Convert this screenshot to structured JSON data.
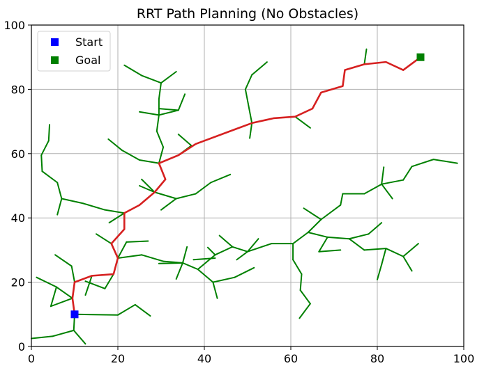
{
  "chart_data": {
    "type": "line",
    "title": "RRT Path Planning (No Obstacles)",
    "xlabel": "",
    "ylabel": "",
    "xlim": [
      0,
      100
    ],
    "ylim": [
      0,
      100
    ],
    "xticks": [
      "0",
      "20",
      "40",
      "60",
      "80",
      "100"
    ],
    "yticks": [
      "0",
      "20",
      "40",
      "60",
      "80",
      "100"
    ],
    "grid": true,
    "legend_position": "top-left",
    "colors": {
      "tree": "#008000",
      "path": "#d62020",
      "start": "#0000ff",
      "goal": "#008000"
    },
    "legend": [
      {
        "label": "Start",
        "color": "#0000ff"
      },
      {
        "label": "Goal",
        "color": "#008000"
      }
    ],
    "start": [
      10,
      10
    ],
    "goal": [
      90,
      90
    ],
    "path": [
      [
        10,
        10
      ],
      [
        9.5,
        15
      ],
      [
        10,
        20
      ],
      [
        14,
        22
      ],
      [
        19,
        22.5
      ],
      [
        20,
        27.5
      ],
      [
        18.5,
        32
      ],
      [
        21.5,
        36.5
      ],
      [
        21.5,
        41.5
      ],
      [
        25,
        44
      ],
      [
        28.5,
        48
      ],
      [
        31,
        52
      ],
      [
        29.5,
        57
      ],
      [
        34,
        59.5
      ],
      [
        38,
        63
      ],
      [
        47,
        67.5
      ],
      [
        51,
        69.5
      ],
      [
        56,
        71
      ],
      [
        61,
        71.5
      ],
      [
        65,
        74
      ],
      [
        67,
        79
      ],
      [
        72,
        81
      ],
      [
        72.5,
        86
      ],
      [
        77,
        87.8
      ],
      [
        82,
        88.5
      ],
      [
        86,
        86
      ],
      [
        90,
        90
      ]
    ],
    "tree": [
      [
        [
          10,
          10
        ],
        [
          20,
          9.8
        ]
      ],
      [
        [
          20,
          9.8
        ],
        [
          24,
          13
        ]
      ],
      [
        [
          24,
          13
        ],
        [
          27.5,
          9.5
        ]
      ],
      [
        [
          10,
          10
        ],
        [
          9.8,
          5
        ]
      ],
      [
        [
          9.8,
          5
        ],
        [
          12.5,
          0.8
        ]
      ],
      [
        [
          9.8,
          5
        ],
        [
          5,
          3.2
        ]
      ],
      [
        [
          5,
          3.2
        ],
        [
          0,
          2.5
        ]
      ],
      [
        [
          9.5,
          15
        ],
        [
          5.8,
          18.5
        ]
      ],
      [
        [
          5.8,
          18.5
        ],
        [
          1.2,
          21.5
        ]
      ],
      [
        [
          5.8,
          18.5
        ],
        [
          4.5,
          12.5
        ]
      ],
      [
        [
          4.5,
          12.5
        ],
        [
          9.5,
          15
        ]
      ],
      [
        [
          10,
          20
        ],
        [
          9.3,
          25
        ]
      ],
      [
        [
          9.3,
          25
        ],
        [
          5.5,
          28.5
        ]
      ],
      [
        [
          14,
          22
        ],
        [
          12.5,
          16
        ]
      ],
      [
        [
          19,
          22.5
        ],
        [
          17,
          18
        ]
      ],
      [
        [
          17,
          18
        ],
        [
          12.5,
          20.3
        ]
      ],
      [
        [
          20,
          27.5
        ],
        [
          25.5,
          28.5
        ]
      ],
      [
        [
          25.5,
          28.5
        ],
        [
          30.5,
          26.5
        ]
      ],
      [
        [
          30.5,
          26.5
        ],
        [
          35,
          26
        ]
      ],
      [
        [
          29.5,
          25.8
        ],
        [
          35,
          26
        ]
      ],
      [
        [
          35,
          26
        ],
        [
          38.5,
          24
        ]
      ],
      [
        [
          35,
          26
        ],
        [
          36,
          31
        ]
      ],
      [
        [
          35,
          26
        ],
        [
          33.5,
          21
        ]
      ],
      [
        [
          38.5,
          24
        ],
        [
          42,
          20
        ]
      ],
      [
        [
          42,
          20
        ],
        [
          43,
          15
        ]
      ],
      [
        [
          42,
          20
        ],
        [
          47,
          21.5
        ]
      ],
      [
        [
          47,
          21.5
        ],
        [
          51.5,
          24.5
        ]
      ],
      [
        [
          38.5,
          24
        ],
        [
          42.5,
          28.5
        ]
      ],
      [
        [
          42.5,
          28.5
        ],
        [
          40.8,
          30.8
        ]
      ],
      [
        [
          37.5,
          27
        ],
        [
          42.5,
          27.5
        ]
      ],
      [
        [
          42.5,
          28.5
        ],
        [
          46.5,
          31
        ]
      ],
      [
        [
          46.5,
          31
        ],
        [
          43.5,
          34.5
        ]
      ],
      [
        [
          46.5,
          31
        ],
        [
          50,
          29.5
        ]
      ],
      [
        [
          50,
          29.5
        ],
        [
          55.5,
          32
        ]
      ],
      [
        [
          55.5,
          32
        ],
        [
          60.5,
          32
        ]
      ],
      [
        [
          50,
          29.5
        ],
        [
          47.5,
          27
        ]
      ],
      [
        [
          50,
          29.5
        ],
        [
          52.5,
          33.5
        ]
      ],
      [
        [
          60.5,
          32
        ],
        [
          60.5,
          27
        ]
      ],
      [
        [
          60.5,
          27
        ],
        [
          62.5,
          22.5
        ]
      ],
      [
        [
          62.5,
          22.5
        ],
        [
          62.2,
          17.5
        ]
      ],
      [
        [
          62.2,
          17.5
        ],
        [
          64.5,
          13.3
        ]
      ],
      [
        [
          64.5,
          13.3
        ],
        [
          62,
          8.8
        ]
      ],
      [
        [
          60.5,
          32
        ],
        [
          64,
          35.5
        ]
      ],
      [
        [
          64,
          35.5
        ],
        [
          68.5,
          34
        ]
      ],
      [
        [
          68.5,
          34
        ],
        [
          66.5,
          29.5
        ]
      ],
      [
        [
          66.5,
          29.5
        ],
        [
          71.5,
          30
        ]
      ],
      [
        [
          68.5,
          34
        ],
        [
          73.5,
          33.5
        ]
      ],
      [
        [
          73.5,
          33.5
        ],
        [
          77,
          30
        ]
      ],
      [
        [
          77,
          30
        ],
        [
          82,
          30.5
        ]
      ],
      [
        [
          82,
          30.5
        ],
        [
          86,
          28
        ]
      ],
      [
        [
          86,
          28
        ],
        [
          88,
          23.5
        ]
      ],
      [
        [
          86,
          28
        ],
        [
          89.5,
          32
        ]
      ],
      [
        [
          82,
          30.5
        ],
        [
          81,
          25.5
        ]
      ],
      [
        [
          81,
          25.5
        ],
        [
          80,
          20.8
        ]
      ],
      [
        [
          73.5,
          33.5
        ],
        [
          78,
          35
        ]
      ],
      [
        [
          78,
          35
        ],
        [
          81,
          38.5
        ]
      ],
      [
        [
          64,
          35.5
        ],
        [
          67,
          39.5
        ]
      ],
      [
        [
          67,
          39.5
        ],
        [
          63,
          43
        ]
      ],
      [
        [
          67,
          39.5
        ],
        [
          71.5,
          44
        ]
      ],
      [
        [
          71.5,
          44
        ],
        [
          72,
          47.5
        ]
      ],
      [
        [
          72,
          47.5
        ],
        [
          77,
          47.5
        ]
      ],
      [
        [
          77,
          47.5
        ],
        [
          81,
          50.5
        ]
      ],
      [
        [
          81,
          50.5
        ],
        [
          81.5,
          55.8
        ]
      ],
      [
        [
          81,
          50.5
        ],
        [
          83.5,
          46
        ]
      ],
      [
        [
          81,
          50.5
        ],
        [
          86,
          51.8
        ]
      ],
      [
        [
          86,
          51.8
        ],
        [
          88,
          56
        ]
      ],
      [
        [
          88,
          56
        ],
        [
          93,
          58.2
        ]
      ],
      [
        [
          93,
          58.2
        ],
        [
          98.5,
          57
        ]
      ],
      [
        [
          21.5,
          41.5
        ],
        [
          17,
          42.5
        ]
      ],
      [
        [
          17,
          42.5
        ],
        [
          12,
          44.5
        ]
      ],
      [
        [
          12,
          44.5
        ],
        [
          7,
          46
        ]
      ],
      [
        [
          7,
          46
        ],
        [
          6,
          41
        ]
      ],
      [
        [
          7,
          46
        ],
        [
          6,
          51
        ]
      ],
      [
        [
          6,
          51
        ],
        [
          2.5,
          54.5
        ]
      ],
      [
        [
          2.5,
          54.5
        ],
        [
          2.3,
          59.5
        ]
      ],
      [
        [
          2.3,
          59.5
        ],
        [
          4,
          64
        ]
      ],
      [
        [
          4,
          64
        ],
        [
          4.2,
          69
        ]
      ],
      [
        [
          21.5,
          41.5
        ],
        [
          18,
          38.5
        ]
      ],
      [
        [
          18.5,
          32
        ],
        [
          15,
          35
        ]
      ],
      [
        [
          20,
          27.5
        ],
        [
          22,
          32.5
        ]
      ],
      [
        [
          22,
          32.5
        ],
        [
          27,
          32.8
        ]
      ],
      [
        [
          28.5,
          48
        ],
        [
          33.5,
          46
        ]
      ],
      [
        [
          33.5,
          46
        ],
        [
          38,
          47.5
        ]
      ],
      [
        [
          38,
          47.5
        ],
        [
          41.5,
          51
        ]
      ],
      [
        [
          41.5,
          51
        ],
        [
          46,
          53.5
        ]
      ],
      [
        [
          33.5,
          46
        ],
        [
          30,
          42.5
        ]
      ],
      [
        [
          28.5,
          48
        ],
        [
          25,
          50
        ]
      ],
      [
        [
          28.5,
          48
        ],
        [
          25.5,
          52
        ]
      ],
      [
        [
          29.5,
          57
        ],
        [
          25,
          58
        ]
      ],
      [
        [
          25,
          58
        ],
        [
          21,
          61
        ]
      ],
      [
        [
          21,
          61
        ],
        [
          17.8,
          64.5
        ]
      ],
      [
        [
          29.5,
          57
        ],
        [
          30.5,
          62
        ]
      ],
      [
        [
          30.5,
          62
        ],
        [
          29,
          67
        ]
      ],
      [
        [
          29,
          67
        ],
        [
          29.5,
          72
        ]
      ],
      [
        [
          29.5,
          72
        ],
        [
          25,
          73
        ]
      ],
      [
        [
          29.5,
          72
        ],
        [
          34,
          73.5
        ]
      ],
      [
        [
          34,
          73.5
        ],
        [
          35.5,
          78.5
        ]
      ],
      [
        [
          34,
          73.5
        ],
        [
          29.5,
          74
        ]
      ],
      [
        [
          29.5,
          72
        ],
        [
          29.5,
          77
        ]
      ],
      [
        [
          29.5,
          77
        ],
        [
          30,
          82
        ]
      ],
      [
        [
          30,
          82
        ],
        [
          25.5,
          84.3
        ]
      ],
      [
        [
          25.5,
          84.3
        ],
        [
          21.5,
          87.5
        ]
      ],
      [
        [
          30,
          82
        ],
        [
          33.5,
          85.5
        ]
      ],
      [
        [
          34,
          59.5
        ],
        [
          37,
          62.5
        ]
      ],
      [
        [
          37,
          62.5
        ],
        [
          34,
          66
        ]
      ],
      [
        [
          51,
          69.5
        ],
        [
          50.5,
          64.8
        ]
      ],
      [
        [
          51,
          69.5
        ],
        [
          49.5,
          80
        ]
      ],
      [
        [
          49.5,
          80
        ],
        [
          51,
          84.5
        ]
      ],
      [
        [
          51,
          84.5
        ],
        [
          54.5,
          88.5
        ]
      ],
      [
        [
          61,
          71.5
        ],
        [
          64.5,
          68
        ]
      ],
      [
        [
          77,
          87.8
        ],
        [
          77.5,
          92.5
        ]
      ]
    ]
  }
}
